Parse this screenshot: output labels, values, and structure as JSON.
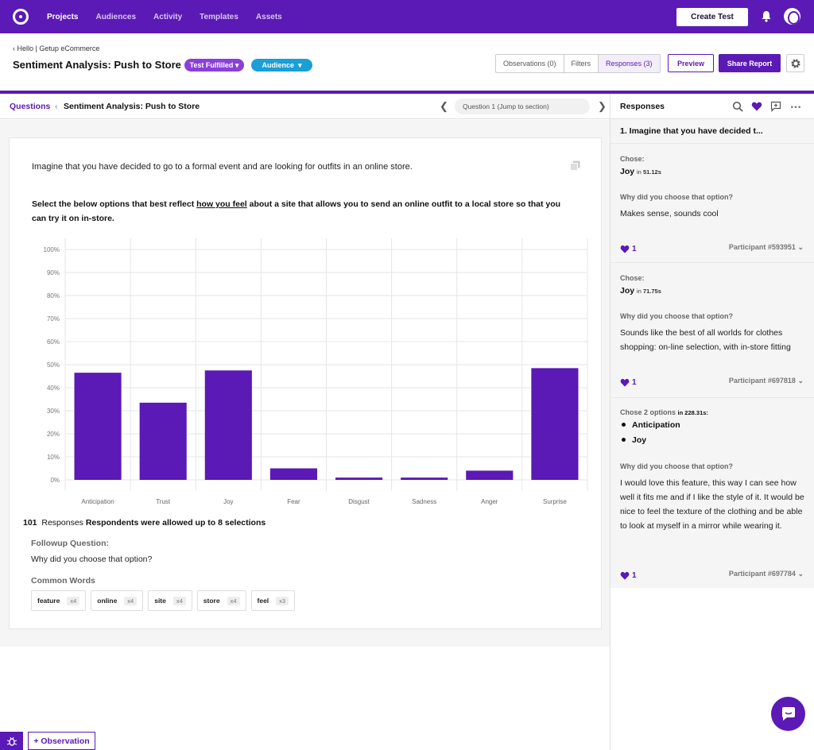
{
  "topnav": {
    "items": [
      "Projects",
      "Audiences",
      "Activity",
      "Templates",
      "Assets"
    ],
    "active": 0,
    "create_label": "Create Test"
  },
  "header": {
    "breadcrumb": "Hello | Getup eCommerce",
    "title": "Sentiment Analysis: Push to Store",
    "status_label": "Test Fulfilled",
    "audience_label": "Audience",
    "tabs": [
      "Observations (0)",
      "Filters",
      "Responses (3)"
    ],
    "preview_label": "Preview",
    "share_label": "Share Report"
  },
  "question_bar": {
    "questions_label": "Questions",
    "title": "Sentiment Analysis: Push to Store",
    "jump_label": "Question 1 (Jump to section)"
  },
  "question": {
    "prompt": "Imagine that you have decided to go to a formal event and are looking for outfits in an online store.",
    "instruction_before": "Select the below options that best reflect ",
    "instruction_link": "how you feel",
    "instruction_after": " about a site that allows you to send an online outfit to a local store so that you can try it on in-store.",
    "responses_count": "101",
    "responses_label": "Responses",
    "responses_note": "Respondents were allowed up to 8 selections",
    "followup_label": "Followup Question:",
    "followup_question": "Why did you choose that option?",
    "common_words_label": "Common Words",
    "common_words": [
      {
        "word": "feature",
        "count": "x4"
      },
      {
        "word": "online",
        "count": "x4"
      },
      {
        "word": "site",
        "count": "x4"
      },
      {
        "word": "store",
        "count": "x4"
      },
      {
        "word": "feel",
        "count": "x3"
      }
    ]
  },
  "chart_data": {
    "type": "bar",
    "categories": [
      "Anticipation",
      "Trust",
      "Joy",
      "Fear",
      "Disgust",
      "Sadness",
      "Anger",
      "Surprise"
    ],
    "values": [
      46.5,
      33.5,
      47.5,
      5,
      1,
      1,
      4,
      48.5
    ],
    "y_ticks": [
      "0%",
      "10%",
      "20%",
      "30%",
      "40%",
      "50%",
      "60%",
      "70%",
      "80%",
      "90%",
      "100%"
    ],
    "ylim": [
      0,
      100
    ],
    "grid": true,
    "bar_color": "#5b19b5"
  },
  "responses_panel": {
    "title": "Responses",
    "question": "1. Imagine that you have decided t...",
    "chose_label": "Chose:",
    "in_label": "in",
    "why_label": "Why did you choose that option?",
    "cards": [
      {
        "answer": "Joy",
        "time": "51.12s",
        "text": "Makes sense, sounds cool",
        "likes": "1",
        "participant": "Participant #593951"
      },
      {
        "answer": "Joy",
        "time": "71.75s",
        "text": "Sounds like the best of all worlds for clothes shopping: on-line selection, with in-store fitting",
        "likes": "1",
        "participant": "Participant #697818"
      },
      {
        "chose_label": "Chose 2 options",
        "time": "228.31s:",
        "options": [
          "Anticipation",
          "Joy"
        ],
        "text": "I would love this feature, this way I can see how well it fits me and if I like the style of it. It would be nice to feel the texture of the clothing and be able to look at myself in a mirror while wearing it.",
        "likes": "1",
        "participant": "Participant #697784"
      }
    ]
  },
  "footer": {
    "observation_label": "+ Observation"
  },
  "colors": {
    "brand": "#5b19b5",
    "status_pill": "#8b3fd9",
    "audience_pill": "#1a9fd6"
  }
}
